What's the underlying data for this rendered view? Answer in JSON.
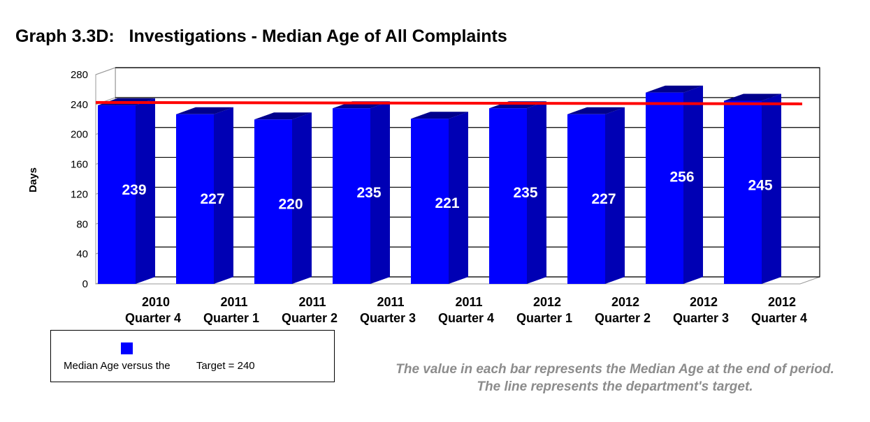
{
  "title": "Graph 3.3D:   Investigations - Median Age of All Complaints",
  "chart_data": {
    "type": "bar",
    "categories": [
      [
        "2010",
        "Quarter 4"
      ],
      [
        "2011",
        "Quarter 1"
      ],
      [
        "2011",
        "Quarter 2"
      ],
      [
        "2011",
        "Quarter 3"
      ],
      [
        "2011",
        "Quarter 4"
      ],
      [
        "2012",
        "Quarter 1"
      ],
      [
        "2012",
        "Quarter 2"
      ],
      [
        "2012",
        "Quarter 3"
      ],
      [
        "2012",
        "Quarter 4"
      ]
    ],
    "values": [
      239,
      227,
      220,
      235,
      221,
      235,
      227,
      256,
      245
    ],
    "target": 240,
    "ylabel": "Days",
    "ylim": [
      0,
      280
    ],
    "yticks": [
      0,
      40,
      80,
      120,
      160,
      200,
      240,
      280
    ],
    "grid": true,
    "style": "3d-bar",
    "data_labels": "inside-bar",
    "colors": {
      "bar_front": "#0000ff",
      "bar_side": "#0000b4",
      "bar_top": "#00008c",
      "target_line": "#ff0000",
      "label_text": "#ffffff"
    }
  },
  "legend": {
    "label": "Median Age versus the         Target = 240",
    "position": "bottom-left"
  },
  "note": "The value in each bar represents the Median Age at the end of period.  The line represents the department's target."
}
